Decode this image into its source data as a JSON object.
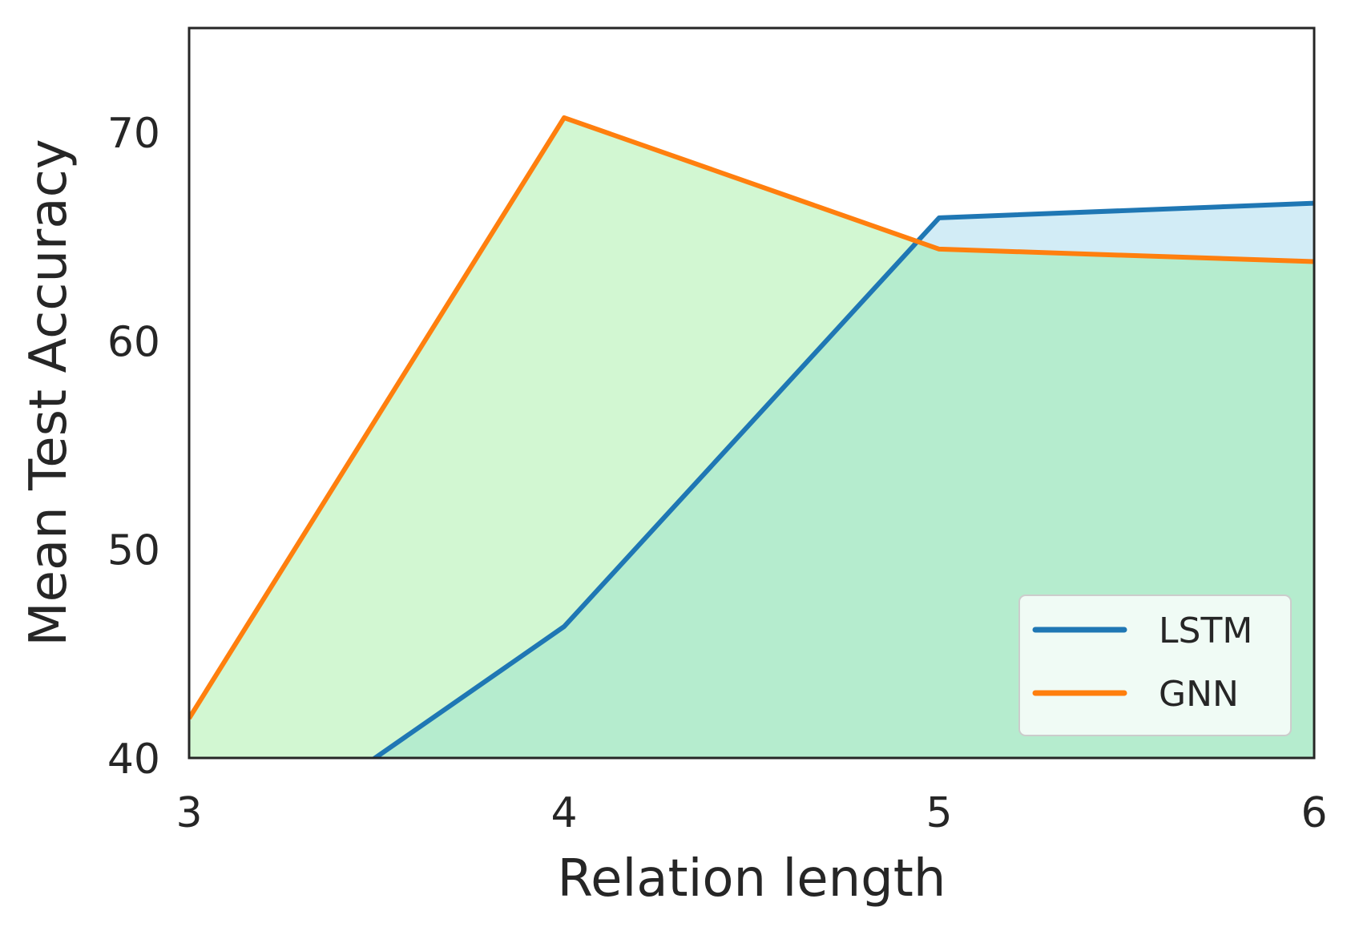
{
  "chart_data": {
    "type": "area",
    "title": "",
    "xlabel": "Relation length",
    "ylabel": "Mean Test Accuracy",
    "x": [
      3,
      4,
      5,
      6
    ],
    "xlim": [
      3,
      6
    ],
    "ylim": [
      40,
      75
    ],
    "xticks": [
      "3",
      "4",
      "5",
      "6"
    ],
    "yticks": [
      "40",
      "50",
      "60",
      "70"
    ],
    "ytick_values": [
      40,
      50,
      60,
      70
    ],
    "grid": false,
    "legend": "lower-right",
    "series": [
      {
        "name": "LSTM",
        "values": [
          33.8,
          46.3,
          65.9,
          66.6
        ],
        "line_color": "#1f77b4",
        "fill_color": "#d0ebf6"
      },
      {
        "name": "GNN",
        "values": [
          41.9,
          70.7,
          64.4,
          63.8
        ],
        "line_color": "#ff7f0e",
        "fill_color": "#d2f7d2"
      }
    ],
    "overlap_fill_color": "#b5ecce"
  }
}
